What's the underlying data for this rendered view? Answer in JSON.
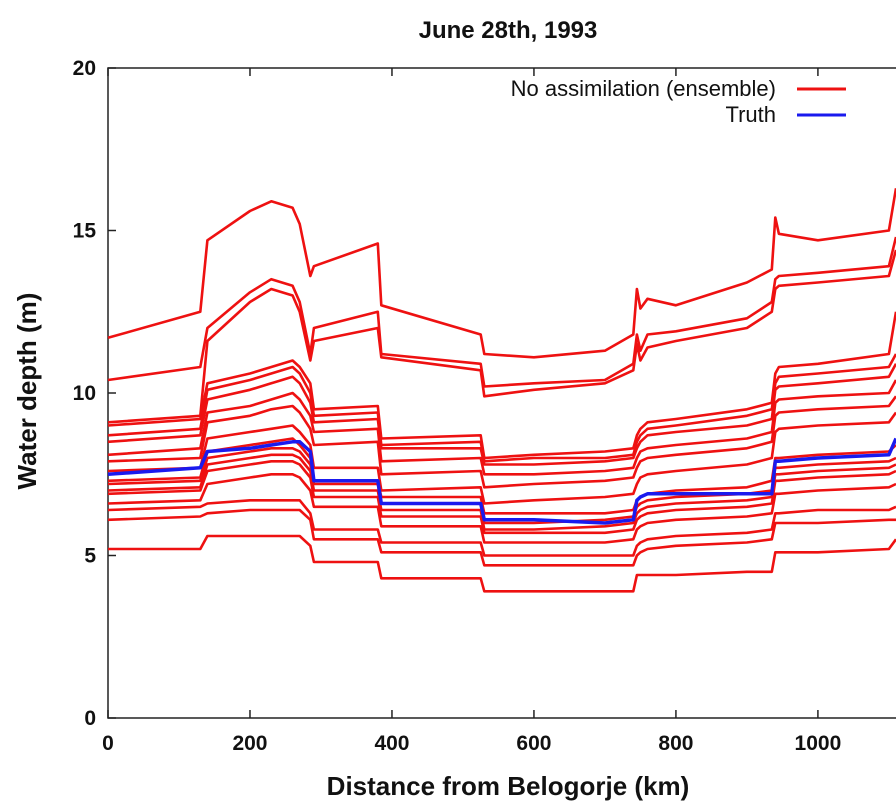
{
  "chart_data": {
    "type": "line",
    "title": "June 28th, 1993",
    "xlabel": "Distance from Belogorje (km)",
    "ylabel": "Water depth (m)",
    "xlim": [
      0,
      1110
    ],
    "ylim": [
      0,
      20
    ],
    "xticks": [
      0,
      200,
      400,
      600,
      800,
      1000
    ],
    "yticks": [
      0,
      5,
      10,
      15,
      20
    ],
    "grid": false,
    "legend_position": "top-right",
    "x": [
      0,
      130,
      140,
      200,
      230,
      260,
      270,
      285,
      290,
      380,
      385,
      525,
      530,
      600,
      700,
      740,
      745,
      750,
      760,
      800,
      900,
      935,
      940,
      945,
      1000,
      1100,
      1110
    ],
    "series": [
      {
        "name": "No assimilation (ensemble)",
        "color": "#ee1111",
        "values": [
          11.7,
          12.5,
          14.7,
          15.6,
          15.9,
          15.7,
          15.2,
          13.6,
          13.9,
          14.6,
          12.7,
          11.8,
          11.2,
          11.1,
          11.3,
          11.8,
          13.2,
          12.6,
          12.9,
          12.7,
          13.4,
          13.8,
          15.4,
          14.9,
          14.7,
          15.0,
          16.3
        ]
      },
      {
        "values": [
          10.4,
          10.8,
          12.0,
          13.1,
          13.5,
          13.3,
          12.8,
          11.2,
          12.0,
          12.5,
          11.2,
          10.9,
          10.2,
          10.3,
          10.4,
          10.9,
          11.8,
          11.3,
          11.8,
          11.9,
          12.3,
          12.8,
          13.5,
          13.6,
          13.7,
          13.9,
          14.8
        ]
      },
      {
        "values": [
          9.1,
          9.3,
          11.6,
          12.8,
          13.2,
          13.0,
          12.5,
          11.0,
          11.6,
          12.0,
          11.1,
          10.7,
          9.9,
          10.1,
          10.3,
          10.7,
          11.5,
          11.0,
          11.4,
          11.6,
          12.0,
          12.5,
          13.2,
          13.3,
          13.4,
          13.6,
          14.4
        ]
      },
      {
        "values": [
          9.0,
          9.2,
          10.3,
          10.6,
          10.8,
          11.0,
          10.8,
          10.3,
          9.5,
          9.6,
          8.6,
          8.7,
          8.0,
          8.1,
          8.2,
          8.3,
          8.7,
          8.9,
          9.1,
          9.2,
          9.5,
          9.7,
          10.6,
          10.8,
          10.9,
          11.2,
          12.5
        ]
      },
      {
        "values": [
          8.7,
          8.9,
          10.1,
          10.4,
          10.6,
          10.8,
          10.6,
          10.0,
          9.3,
          9.4,
          8.4,
          8.5,
          7.9,
          8.0,
          8.0,
          8.1,
          8.5,
          8.7,
          8.9,
          9.0,
          9.3,
          9.5,
          10.3,
          10.5,
          10.6,
          10.8,
          11.2
        ]
      },
      {
        "values": [
          8.5,
          8.7,
          9.8,
          10.1,
          10.3,
          10.5,
          10.3,
          9.7,
          9.1,
          9.2,
          8.3,
          8.3,
          7.8,
          7.8,
          7.9,
          8.0,
          8.3,
          8.5,
          8.7,
          8.8,
          9.0,
          9.2,
          10.1,
          10.2,
          10.3,
          10.5,
          10.9
        ]
      },
      {
        "values": [
          8.1,
          8.3,
          9.4,
          9.6,
          9.8,
          10.0,
          9.8,
          9.3,
          8.8,
          8.9,
          7.9,
          8.0,
          7.5,
          7.5,
          7.6,
          7.7,
          8.0,
          8.2,
          8.3,
          8.4,
          8.6,
          8.8,
          9.7,
          9.8,
          9.9,
          10.0,
          10.4
        ]
      },
      {
        "values": [
          7.9,
          8.0,
          9.1,
          9.3,
          9.5,
          9.6,
          9.4,
          8.9,
          8.4,
          8.5,
          7.5,
          7.6,
          7.1,
          7.2,
          7.3,
          7.4,
          7.7,
          7.9,
          8.0,
          8.1,
          8.3,
          8.5,
          9.3,
          9.4,
          9.5,
          9.6,
          9.9
        ]
      },
      {
        "values": [
          7.6,
          7.7,
          8.6,
          8.8,
          8.9,
          9.0,
          8.8,
          8.4,
          7.7,
          7.7,
          7.0,
          7.1,
          6.6,
          6.7,
          6.8,
          6.9,
          7.2,
          7.4,
          7.5,
          7.6,
          7.8,
          8.0,
          8.8,
          8.9,
          9.0,
          9.1,
          9.4
        ]
      },
      {
        "values": [
          7.3,
          7.4,
          8.2,
          8.4,
          8.5,
          8.6,
          8.4,
          8.0,
          7.3,
          7.3,
          6.8,
          6.8,
          6.3,
          6.3,
          6.3,
          6.4,
          6.7,
          6.8,
          6.9,
          7.0,
          7.1,
          7.3,
          8.0,
          8.0,
          8.1,
          8.2,
          8.4
        ]
      },
      {
        "values": [
          7.2,
          7.3,
          8.0,
          8.2,
          8.3,
          8.3,
          8.2,
          7.8,
          7.2,
          7.2,
          6.6,
          6.6,
          6.0,
          6.0,
          6.1,
          6.2,
          6.5,
          6.6,
          6.7,
          6.8,
          6.9,
          7.0,
          7.7,
          7.7,
          7.8,
          7.9,
          8.0
        ]
      },
      {
        "values": [
          7.0,
          7.1,
          7.8,
          8.0,
          8.1,
          8.1,
          8.0,
          7.6,
          7.0,
          7.0,
          6.4,
          6.4,
          5.8,
          5.8,
          5.9,
          6.0,
          6.3,
          6.4,
          6.5,
          6.6,
          6.7,
          6.8,
          7.5,
          7.5,
          7.6,
          7.7,
          7.8
        ]
      },
      {
        "values": [
          6.9,
          7.0,
          7.6,
          7.8,
          7.9,
          7.9,
          7.8,
          7.4,
          6.8,
          6.8,
          6.2,
          6.2,
          5.7,
          5.7,
          5.7,
          5.8,
          6.1,
          6.2,
          6.3,
          6.4,
          6.5,
          6.6,
          7.3,
          7.3,
          7.4,
          7.5,
          7.6
        ]
      },
      {
        "values": [
          6.6,
          6.7,
          7.2,
          7.4,
          7.5,
          7.5,
          7.4,
          7.0,
          6.5,
          6.5,
          5.9,
          5.9,
          5.4,
          5.4,
          5.4,
          5.5,
          5.8,
          5.9,
          6.0,
          6.1,
          6.2,
          6.3,
          6.9,
          6.9,
          7.0,
          7.1,
          7.2
        ]
      },
      {
        "values": [
          6.4,
          6.5,
          6.6,
          6.7,
          6.7,
          6.7,
          6.7,
          6.3,
          5.8,
          5.8,
          5.4,
          5.4,
          5.0,
          5.0,
          5.0,
          5.0,
          5.3,
          5.4,
          5.5,
          5.6,
          5.7,
          5.8,
          6.3,
          6.3,
          6.4,
          6.4,
          6.5
        ]
      },
      {
        "values": [
          6.1,
          6.2,
          6.3,
          6.4,
          6.4,
          6.4,
          6.4,
          6.1,
          5.5,
          5.5,
          5.1,
          5.1,
          4.7,
          4.7,
          4.7,
          4.7,
          5.0,
          5.1,
          5.2,
          5.3,
          5.4,
          5.5,
          6.0,
          6.0,
          6.0,
          6.1,
          6.1
        ]
      },
      {
        "values": [
          5.2,
          5.2,
          5.6,
          5.6,
          5.6,
          5.6,
          5.6,
          5.3,
          4.8,
          4.8,
          4.3,
          4.3,
          3.9,
          3.9,
          3.9,
          3.9,
          4.4,
          4.4,
          4.4,
          4.4,
          4.5,
          4.5,
          5.1,
          5.1,
          5.1,
          5.2,
          5.5
        ]
      },
      {
        "name": "Truth",
        "color": "#1a1aee",
        "values": [
          7.5,
          7.7,
          8.2,
          8.3,
          8.4,
          8.5,
          8.5,
          8.2,
          7.3,
          7.3,
          6.6,
          6.6,
          6.1,
          6.1,
          6.0,
          6.1,
          6.7,
          6.8,
          6.9,
          6.9,
          6.9,
          6.9,
          7.9,
          7.9,
          8.0,
          8.1,
          8.6
        ]
      }
    ]
  }
}
